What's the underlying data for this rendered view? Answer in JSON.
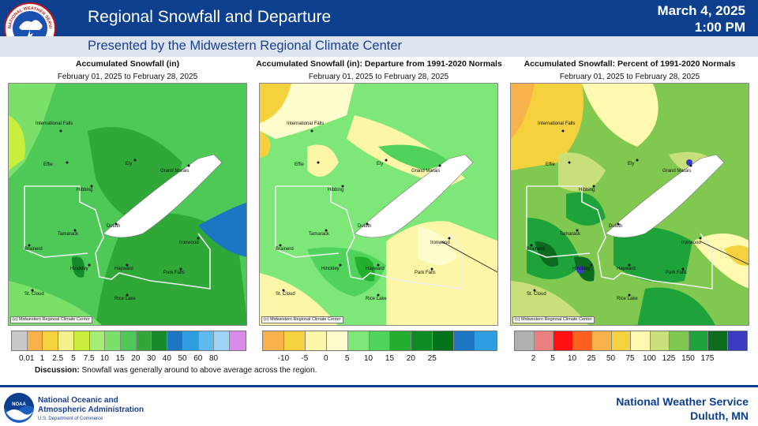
{
  "header": {
    "title": "Regional Snowfall and Departure",
    "date": "March 4, 2025",
    "time": "1:00 PM",
    "subtitle": "Presented by the Midwestern Regional Climate Center",
    "logo_text": "NATIONAL WEATHER SERVICE"
  },
  "panels": [
    {
      "title": "Accumulated Snowfall (in)",
      "dates": "February 01, 2025 to February 28, 2025",
      "credit": "(c) Midwestern Regional Climate Center",
      "legend_colors": [
        "#c8c8c8",
        "#f8b24a",
        "#f6d13e",
        "#f5f08c",
        "#c9ef3c",
        "#a6ee73",
        "#7ae06a",
        "#4ec856",
        "#2fa837",
        "#168a2a",
        "#1d76c2",
        "#2f9ee0",
        "#5fbaf0",
        "#9ed3f5",
        "#d88be8"
      ],
      "legend_ticks": [
        "0.01",
        "1",
        "2.5",
        "5",
        "7.5",
        "10",
        "15",
        "20",
        "30",
        "40",
        "50",
        "60",
        "80"
      ]
    },
    {
      "title": "Accumulated Snowfall (in): Departure from 1991-2020 Normals",
      "dates": "February 01, 2025 to February 28, 2025",
      "credit": "(c) Midwestern Regional Climate Center",
      "legend_colors": [
        "#f8b24a",
        "#f6d13e",
        "#fbf7a6",
        "#fffccd",
        "#7de878",
        "#4fd35a",
        "#24b02f",
        "#0c8c23",
        "#00721a",
        "#1d76c2",
        "#2f9ee0"
      ],
      "legend_ticks": [
        "-10",
        "-5",
        "0",
        "5",
        "10",
        "15",
        "20",
        "25"
      ]
    },
    {
      "title": "Accumulated Snowfall: Percent of 1991-2020 Normals",
      "dates": "February 01, 2025 to February 28, 2025",
      "credit": "(c) Midwestern Regional Climate Center",
      "legend_colors": [
        "#b0b0b0",
        "#e88080",
        "#ff1010",
        "#ff6020",
        "#f8b24a",
        "#f6d13e",
        "#fffab0",
        "#c9e07a",
        "#80c850",
        "#1ea33a",
        "#0c6b1f",
        "#3a3cc0"
      ],
      "legend_ticks": [
        "2",
        "5",
        "10",
        "25",
        "50",
        "75",
        "100",
        "125",
        "150",
        "175"
      ]
    }
  ],
  "cities": [
    "International Falls",
    "Effie",
    "Ely",
    "Grand Marais",
    "Hibbing",
    "Duluth",
    "Tamarack",
    "Ironwood",
    "Brainerd",
    "Hinckley",
    "Hayward",
    "Park Falls",
    "St. Cloud",
    "Rice Lake"
  ],
  "discussion": {
    "label": "Discussion:",
    "text": "Snowfall was generally around to above average across the region."
  },
  "footer": {
    "noaa_line1": "National Oceanic and",
    "noaa_line2": "Atmospheric Administration",
    "noaa_dept": "U.S. Department of Commerce",
    "nws_line1": "National Weather Service",
    "nws_line2": "Duluth, MN"
  }
}
